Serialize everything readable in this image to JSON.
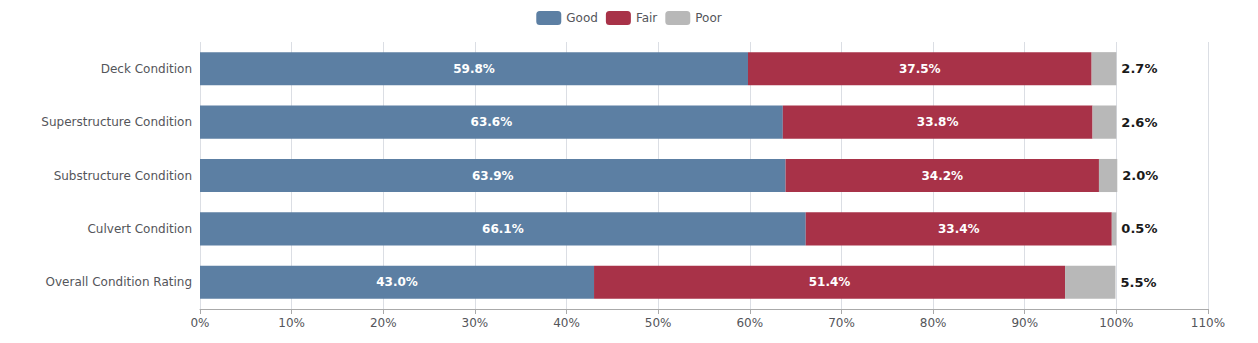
{
  "chart_data": {
    "type": "bar",
    "orientation": "horizontal",
    "stacked": true,
    "categories": [
      "Deck Condition",
      "Superstructure Condition",
      "Substructure Condition",
      "Culvert Condition",
      "Overall Condition Rating"
    ],
    "series": [
      {
        "name": "Good",
        "color": "#5c7fa3",
        "values": [
          59.8,
          63.6,
          63.9,
          66.1,
          43.0
        ],
        "value_labels": [
          "59.8%",
          "63.6%",
          "63.9%",
          "66.1%",
          "43.0%"
        ]
      },
      {
        "name": "Fair",
        "color": "#a83248",
        "values": [
          37.5,
          33.8,
          34.2,
          33.4,
          51.4
        ],
        "value_labels": [
          "37.5%",
          "33.8%",
          "34.2%",
          "33.4%",
          "51.4%"
        ]
      },
      {
        "name": "Poor",
        "color": "#b8b8b8",
        "values": [
          2.7,
          2.6,
          2.0,
          0.5,
          5.5
        ],
        "value_labels": [
          "2.7%",
          "2.6%",
          "2.0%",
          "0.5%",
          "5.5%"
        ]
      }
    ],
    "data_labels": true,
    "xlim": [
      0,
      110
    ],
    "xticks": [
      {
        "value": 0,
        "label": "0%"
      },
      {
        "value": 10,
        "label": "10%"
      },
      {
        "value": 20,
        "label": "20%"
      },
      {
        "value": 30,
        "label": "30%"
      },
      {
        "value": 40,
        "label": "40%"
      },
      {
        "value": 50,
        "label": "50%"
      },
      {
        "value": 60,
        "label": "60%"
      },
      {
        "value": 70,
        "label": "70%"
      },
      {
        "value": 80,
        "label": "80%"
      },
      {
        "value": 90,
        "label": "90%"
      },
      {
        "value": 100,
        "label": "100%"
      },
      {
        "value": 110,
        "label": "110%"
      }
    ],
    "grid": true,
    "legend": "top"
  }
}
